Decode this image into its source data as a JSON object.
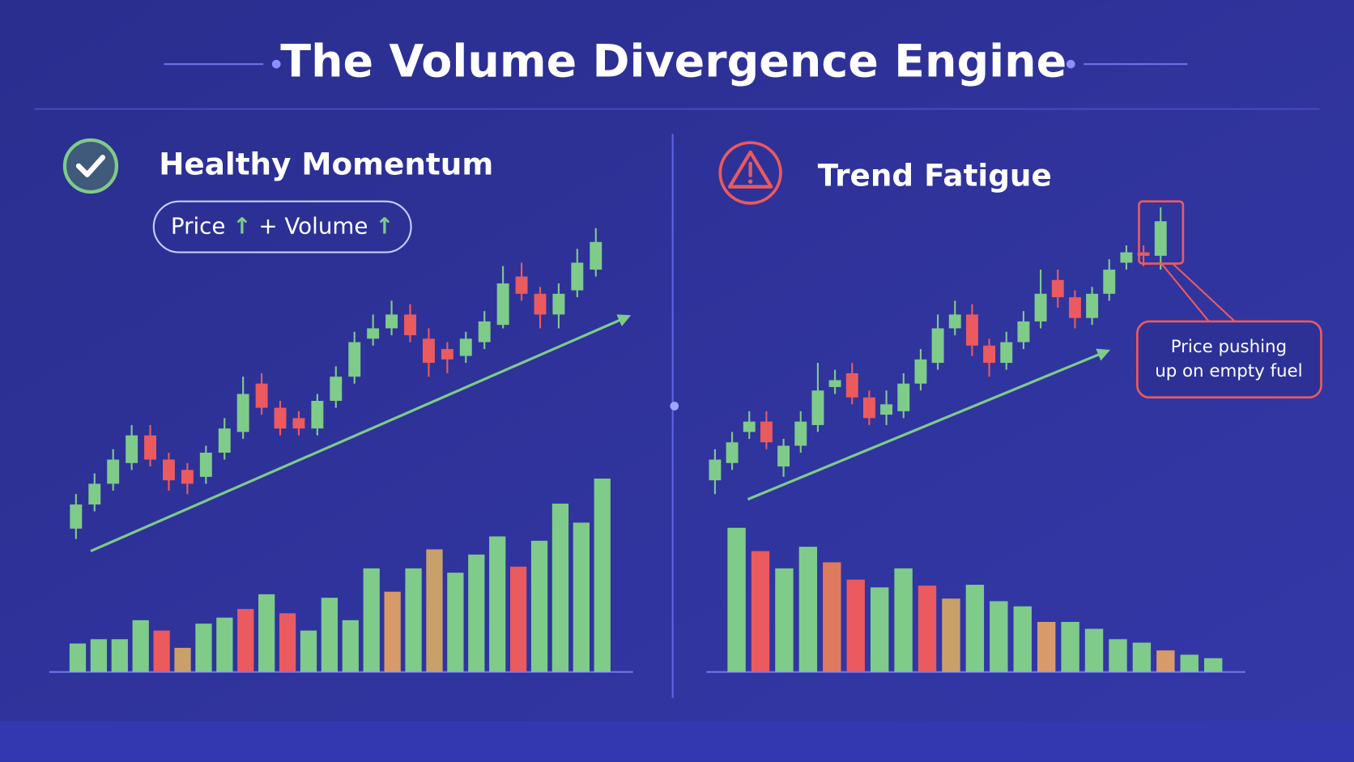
{
  "title": "The Volume Divergence Engine",
  "panels": [
    {
      "type": "candlestick",
      "heading": "Healthy Momentum",
      "badge": [
        "Price",
        "↑",
        "+ Volume",
        "↑"
      ],
      "candles": [
        {
          "open": 22,
          "close": 29,
          "high": 32,
          "low": 19
        },
        {
          "open": 29,
          "close": 35,
          "high": 38,
          "low": 27
        },
        {
          "open": 35,
          "close": 42,
          "high": 45,
          "low": 33
        },
        {
          "open": 41,
          "close": 49,
          "high": 52,
          "low": 39
        },
        {
          "open": 49,
          "close": 42,
          "high": 52,
          "low": 40
        },
        {
          "open": 42,
          "close": 36,
          "high": 44,
          "low": 33
        },
        {
          "open": 39,
          "close": 35,
          "high": 41,
          "low": 32
        },
        {
          "open": 37,
          "close": 44,
          "high": 46,
          "low": 35
        },
        {
          "open": 44,
          "close": 51,
          "high": 54,
          "low": 42
        },
        {
          "open": 50,
          "close": 61,
          "high": 66,
          "low": 48
        },
        {
          "open": 64,
          "close": 57,
          "high": 67,
          "low": 55
        },
        {
          "open": 57,
          "close": 51,
          "high": 59,
          "low": 49
        },
        {
          "open": 54,
          "close": 51,
          "high": 56,
          "low": 49
        },
        {
          "open": 51,
          "close": 59,
          "high": 61,
          "low": 49
        },
        {
          "open": 59,
          "close": 66,
          "high": 69,
          "low": 57
        },
        {
          "open": 66,
          "close": 76,
          "high": 79,
          "low": 64
        },
        {
          "open": 77,
          "close": 80,
          "high": 84,
          "low": 75
        },
        {
          "open": 80,
          "close": 84,
          "high": 88,
          "low": 78
        },
        {
          "open": 84,
          "close": 78,
          "high": 87,
          "low": 76
        },
        {
          "open": 77,
          "close": 70,
          "high": 80,
          "low": 66
        },
        {
          "open": 74,
          "close": 71,
          "high": 76,
          "low": 67
        },
        {
          "open": 72,
          "close": 77,
          "high": 79,
          "low": 70
        },
        {
          "open": 76,
          "close": 82,
          "high": 85,
          "low": 74
        },
        {
          "open": 81,
          "close": 93,
          "high": 98,
          "low": 80
        },
        {
          "open": 95,
          "close": 90,
          "high": 99,
          "low": 88
        },
        {
          "open": 90,
          "close": 84,
          "high": 92,
          "low": 80
        },
        {
          "open": 84,
          "close": 90,
          "high": 93,
          "low": 80
        },
        {
          "open": 91,
          "close": 99,
          "high": 103,
          "low": 89
        },
        {
          "open": 97,
          "close": 105,
          "high": 109,
          "low": 95
        }
      ],
      "volume": [
        33,
        38,
        38,
        60,
        48,
        28,
        56,
        63,
        73,
        90,
        68,
        48,
        86,
        60,
        120,
        93,
        120,
        142,
        115,
        136,
        157,
        122,
        152,
        195,
        173,
        224
      ],
      "volume_colors": [
        "#7fcb8a",
        "#7fcb8a",
        "#7fcb8a",
        "#7fcb8a",
        "#ea5a5f",
        "#c9a06a",
        "#7fcb8a",
        "#7fcb8a",
        "#ea5a5f",
        "#7fcb8a",
        "#ea5a5f",
        "#7fcb8a",
        "#7fcb8a",
        "#7fcb8a",
        "#7fcb8a",
        "#d99a6a",
        "#7fcb8a",
        "#c9a06a",
        "#7fcb8a",
        "#7fcb8a",
        "#7fcb8a",
        "#ea5a5f",
        "#7fcb8a",
        "#7fcb8a",
        "#7fcb8a",
        "#7fcb8a"
      ]
    },
    {
      "type": "candlestick",
      "heading": "Trend Fatigue",
      "callout": [
        "Price pushing",
        "up on empty fuel"
      ],
      "candles": [
        {
          "open": 36,
          "close": 42,
          "high": 45,
          "low": 32
        },
        {
          "open": 41,
          "close": 47,
          "high": 50,
          "low": 39
        },
        {
          "open": 50,
          "close": 53,
          "high": 56,
          "low": 48
        },
        {
          "open": 53,
          "close": 47,
          "high": 56,
          "low": 45
        },
        {
          "open": 40,
          "close": 46,
          "high": 48,
          "low": 37
        },
        {
          "open": 46,
          "close": 53,
          "high": 56,
          "low": 44
        },
        {
          "open": 52,
          "close": 62,
          "high": 70,
          "low": 50
        },
        {
          "open": 63,
          "close": 65,
          "high": 68,
          "low": 61
        },
        {
          "open": 67,
          "close": 60,
          "high": 70,
          "low": 58
        },
        {
          "open": 60,
          "close": 54,
          "high": 62,
          "low": 52
        },
        {
          "open": 55,
          "close": 58,
          "high": 62,
          "low": 52
        },
        {
          "open": 56,
          "close": 64,
          "high": 67,
          "low": 54
        },
        {
          "open": 64,
          "close": 71,
          "high": 74,
          "low": 62
        },
        {
          "open": 70,
          "close": 80,
          "high": 84,
          "low": 68
        },
        {
          "open": 80,
          "close": 84,
          "high": 88,
          "low": 78
        },
        {
          "open": 84,
          "close": 75,
          "high": 87,
          "low": 72
        },
        {
          "open": 75,
          "close": 70,
          "high": 77,
          "low": 66
        },
        {
          "open": 70,
          "close": 76,
          "high": 79,
          "low": 68
        },
        {
          "open": 76,
          "close": 82,
          "high": 85,
          "low": 74
        },
        {
          "open": 82,
          "close": 90,
          "high": 97,
          "low": 80
        },
        {
          "open": 94,
          "close": 89,
          "high": 97,
          "low": 86
        },
        {
          "open": 89,
          "close": 83,
          "high": 91,
          "low": 80
        },
        {
          "open": 83,
          "close": 90,
          "high": 92,
          "low": 81
        },
        {
          "open": 90,
          "close": 97,
          "high": 100,
          "low": 88
        },
        {
          "open": 99,
          "close": 102,
          "high": 104,
          "low": 97
        },
        {
          "open": 102,
          "close": 101,
          "high": 104,
          "low": 98
        },
        {
          "open": 101,
          "close": 111,
          "high": 115,
          "low": 97
        }
      ],
      "volume": [
        167,
        140,
        120,
        145,
        127,
        107,
        98,
        120,
        100,
        85,
        101,
        82,
        76,
        58,
        58,
        50,
        38,
        34,
        25,
        20,
        16
      ],
      "volume_colors": [
        "#7fcb8a",
        "#ea5a5f",
        "#7fcb8a",
        "#7fcb8a",
        "#e07a5f",
        "#ea5a5f",
        "#7fcb8a",
        "#7fcb8a",
        "#ea5a5f",
        "#c9a06a",
        "#7fcb8a",
        "#7fcb8a",
        "#7fcb8a",
        "#d99a6a",
        "#7fcb8a",
        "#7fcb8a",
        "#7fcb8a",
        "#7fcb8a",
        "#d99a6a",
        "#7fcb8a",
        "#7fcb8a"
      ]
    }
  ],
  "up_color": "#7fcb8a",
  "down_color": "#ea5a5f"
}
